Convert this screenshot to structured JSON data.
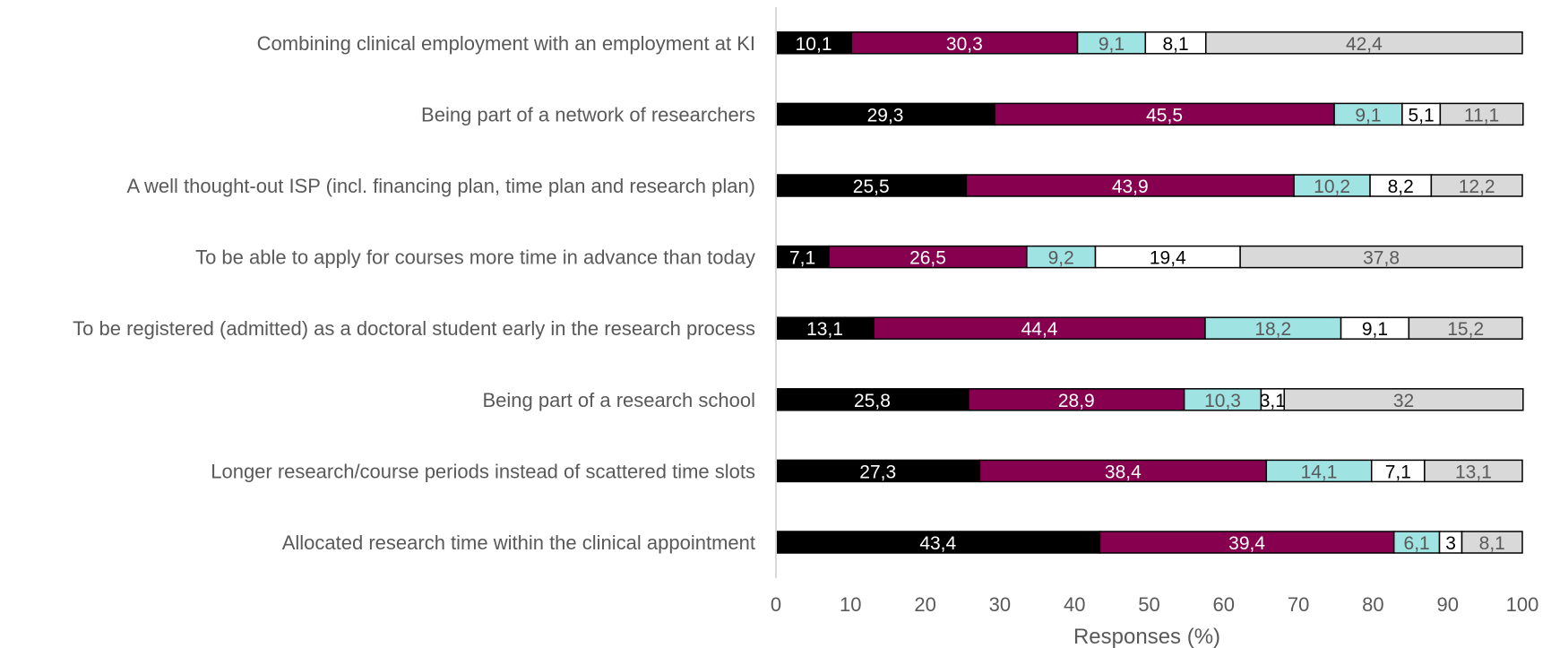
{
  "chart_data": {
    "type": "bar",
    "orientation": "horizontal",
    "stacked": true,
    "title": "",
    "xlabel": "Responses (%)",
    "ylabel": "",
    "xlim": [
      0,
      100
    ],
    "xticks": [
      "0",
      "10",
      "20",
      "30",
      "40",
      "50",
      "60",
      "70",
      "80",
      "90",
      "100"
    ],
    "grid": false,
    "legend": "none",
    "categories": [
      "Combining clinical employment with an employment at KI",
      "Being part of a network of researchers",
      "A well thought-out ISP (incl. financing plan, time plan and research plan)",
      "To be able to apply for courses more time in advance than today",
      "To be registered (admitted) as a doctoral student early in the research process",
      "Being part of a research school",
      "Longer research/course periods instead of scattered time slots",
      "Allocated research time within the clinical appointment"
    ],
    "series": [
      {
        "color": "#000000",
        "text_color": "#ffffff",
        "values": [
          10.1,
          29.3,
          25.5,
          7.1,
          13.1,
          25.8,
          27.3,
          43.4
        ],
        "labels": [
          "10,1",
          "29,3",
          "25,5",
          "7,1",
          "13,1",
          "25,8",
          "27,3",
          "43,4"
        ]
      },
      {
        "color": "#870050",
        "text_color": "#ffffff",
        "values": [
          30.3,
          45.5,
          43.9,
          26.5,
          44.4,
          28.9,
          38.4,
          39.4
        ],
        "labels": [
          "30,3",
          "45,5",
          "43,9",
          "26,5",
          "44,4",
          "28,9",
          "38,4",
          "39,4"
        ]
      },
      {
        "color": "#9fe3e3",
        "text_color": "#595959",
        "values": [
          9.1,
          9.1,
          10.2,
          9.2,
          18.2,
          10.3,
          14.1,
          6.1
        ],
        "labels": [
          "9,1",
          "9,1",
          "10,2",
          "9,2",
          "18,2",
          "10,3",
          "14,1",
          "6,1"
        ]
      },
      {
        "color": "#ffffff",
        "text_color": "#000000",
        "values": [
          8.1,
          5.1,
          8.2,
          19.4,
          9.1,
          3.1,
          7.1,
          3
        ],
        "labels": [
          "8,1",
          "5,1",
          "8,2",
          "19,4",
          "9,1",
          "3,1",
          "7,1",
          "3"
        ]
      },
      {
        "color": "#d9d9d9",
        "text_color": "#595959",
        "values": [
          42.4,
          11.1,
          12.2,
          37.8,
          15.2,
          32,
          13.1,
          8.1
        ],
        "labels": [
          "42,4",
          "11,1",
          "12,2",
          "37,8",
          "15,2",
          "32",
          "13,1",
          "8,1"
        ]
      }
    ]
  }
}
